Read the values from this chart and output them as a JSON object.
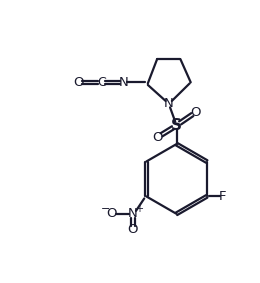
{
  "bg_color": "#ffffff",
  "line_color": "#1a1a2e",
  "line_width": 1.6,
  "figsize": [
    2.6,
    2.83
  ],
  "dpi": 100,
  "xlim": [
    0,
    10
  ],
  "ylim": [
    0,
    10.9
  ]
}
